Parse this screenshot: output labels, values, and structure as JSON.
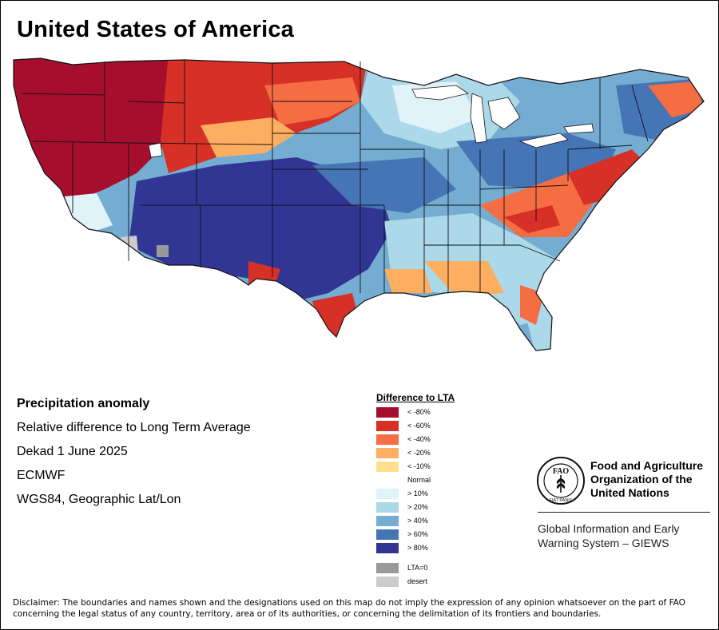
{
  "title": "United States of America",
  "info": {
    "heading": "Precipitation anomaly",
    "subtitle": "Relative difference to Long Term Average",
    "period": "Dekad 1 June 2025",
    "source": "ECMWF",
    "projection": "WGS84, Geographic Lat/Lon"
  },
  "legend": {
    "title": "Difference to LTA",
    "items": [
      {
        "label": "< -80%",
        "color": "#a50f2d"
      },
      {
        "label": "< -60%",
        "color": "#d73027"
      },
      {
        "label": "< -40%",
        "color": "#f46d43"
      },
      {
        "label": "< -20%",
        "color": "#fdae61"
      },
      {
        "label": "< -10%",
        "color": "#fee090"
      },
      {
        "label": "Normal",
        "color": "#ffffff"
      },
      {
        "label": "> 10%",
        "color": "#e0f3f8"
      },
      {
        "label": "> 20%",
        "color": "#abd9e9"
      },
      {
        "label": "> 40%",
        "color": "#74add1"
      },
      {
        "label": "> 60%",
        "color": "#4575b4"
      },
      {
        "label": "> 80%",
        "color": "#313695"
      }
    ],
    "extra": [
      {
        "label": "LTA=0",
        "color": "#999999"
      },
      {
        "label": "desert",
        "color": "#cccccc"
      }
    ]
  },
  "logo": {
    "name_line1": "Food and Agriculture",
    "name_line2": "Organization of the",
    "name_line3": "United Nations",
    "giews_line1": "Global Information and Early",
    "giews_line2": "Warning System – GIEWS",
    "emblem_letters": "FAO",
    "motto": "FIAT PANIS"
  },
  "disclaimer": "Disclaimer: The boundaries and names shown and the designations used on this map do not imply the expression of any opinion whatsoever on the part of FAO concerning the legal status of any country, territory, area or of its authorities, or concerning the delimitation of its frontiers and boundaries."
}
